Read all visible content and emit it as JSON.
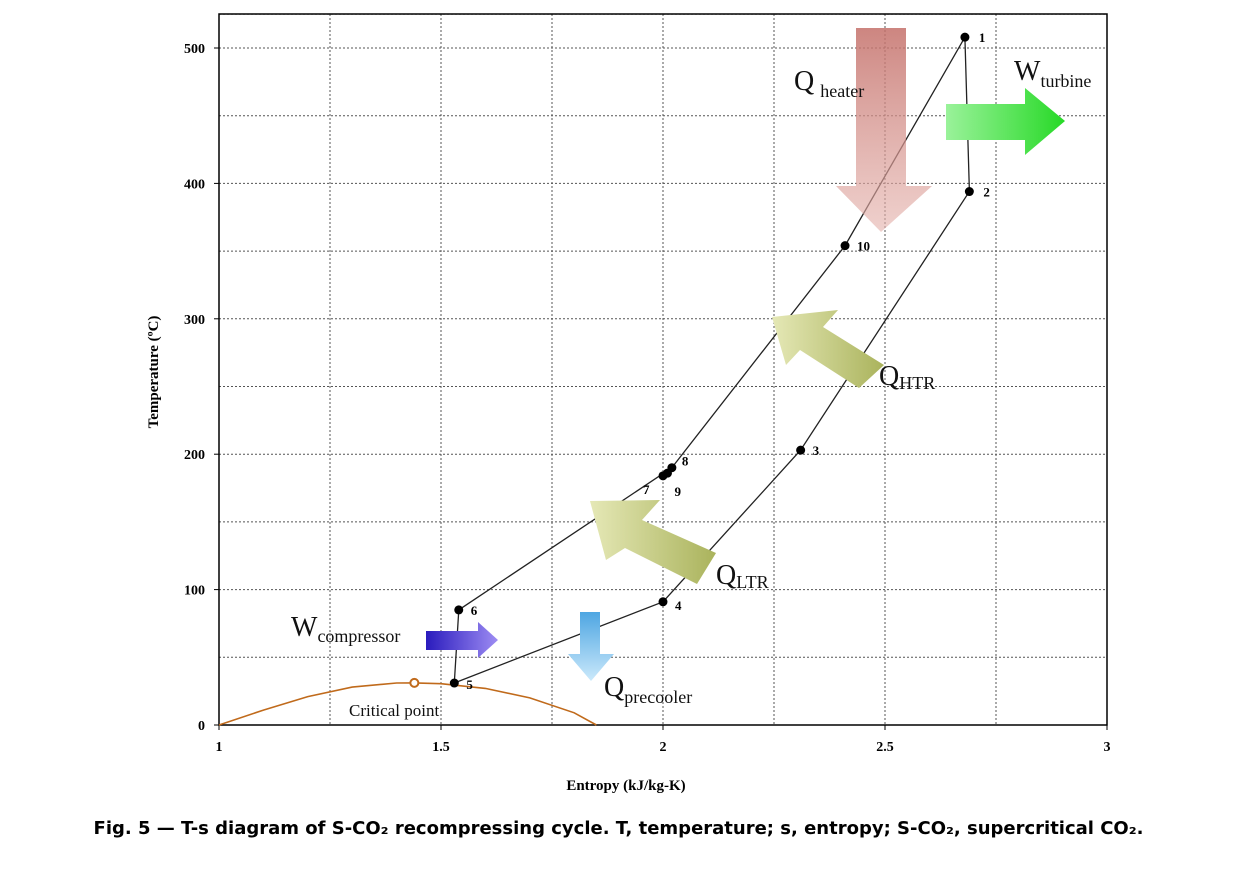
{
  "chart_data": {
    "type": "line",
    "xlabel": "Entropy  (kJ/kg-K)",
    "ylabel": "Temperature (ºC)",
    "xlim": [
      1,
      3
    ],
    "ylim": [
      0,
      525
    ],
    "xticks": [
      1,
      1.5,
      2,
      2.5,
      3
    ],
    "xtick_labels": [
      "1",
      "1.5",
      "2",
      "2.5",
      "3"
    ],
    "yticks": [
      0,
      100,
      200,
      300,
      400,
      500
    ],
    "ytick_labels": [
      "0",
      "100",
      "200",
      "300",
      "400",
      "500"
    ],
    "grid": true,
    "points": [
      {
        "label": "1",
        "x": 2.68,
        "y": 508
      },
      {
        "label": "2",
        "x": 2.69,
        "y": 394
      },
      {
        "label": "3",
        "x": 2.31,
        "y": 203
      },
      {
        "label": "4",
        "x": 2.0,
        "y": 91
      },
      {
        "label": "5",
        "x": 1.53,
        "y": 31
      },
      {
        "label": "6",
        "x": 1.54,
        "y": 85
      },
      {
        "label": "7",
        "x": 2.0,
        "y": 184
      },
      {
        "label": "8",
        "x": 2.02,
        "y": 190
      },
      {
        "label": "9",
        "x": 2.01,
        "y": 186
      },
      {
        "label": "10",
        "x": 2.41,
        "y": 354
      }
    ],
    "paths": [
      [
        [
          1.53,
          31
        ],
        [
          2.0,
          91
        ],
        [
          2.31,
          203
        ],
        [
          2.69,
          394
        ],
        [
          2.68,
          508
        ],
        [
          2.41,
          354
        ],
        [
          2.02,
          190
        ],
        [
          1.54,
          85
        ],
        [
          1.53,
          31
        ]
      ]
    ],
    "saturation_dome": {
      "x": [
        1.0,
        1.1,
        1.2,
        1.3,
        1.4,
        1.44,
        1.5,
        1.6,
        1.7,
        1.8,
        1.85
      ],
      "y": [
        0,
        11,
        21,
        28,
        31,
        31.1,
        30.5,
        27,
        20,
        9,
        0
      ],
      "critical_point": {
        "x": 1.44,
        "y": 31.1,
        "label": "Critical point"
      }
    },
    "annotations": [
      {
        "main": "Q",
        "sub": "heater",
        "color": "#d48a84"
      },
      {
        "main": "W",
        "sub": "turbine",
        "color": "#4fe04f"
      },
      {
        "main": "Q",
        "sub": "HTR",
        "color": "#c9cf86"
      },
      {
        "main": "Q",
        "sub": "LTR",
        "color": "#c9cf86"
      },
      {
        "main": "W",
        "sub": "compressor",
        "color": "#4b33d6"
      },
      {
        "main": "Q",
        "sub": "precooler",
        "color": "#7fc6ee"
      }
    ]
  },
  "caption": "Fig. 5 — T-s diagram of S-CO₂ recompressing cycle. T, temperature; s, entropy; S-CO₂, supercritical CO₂."
}
